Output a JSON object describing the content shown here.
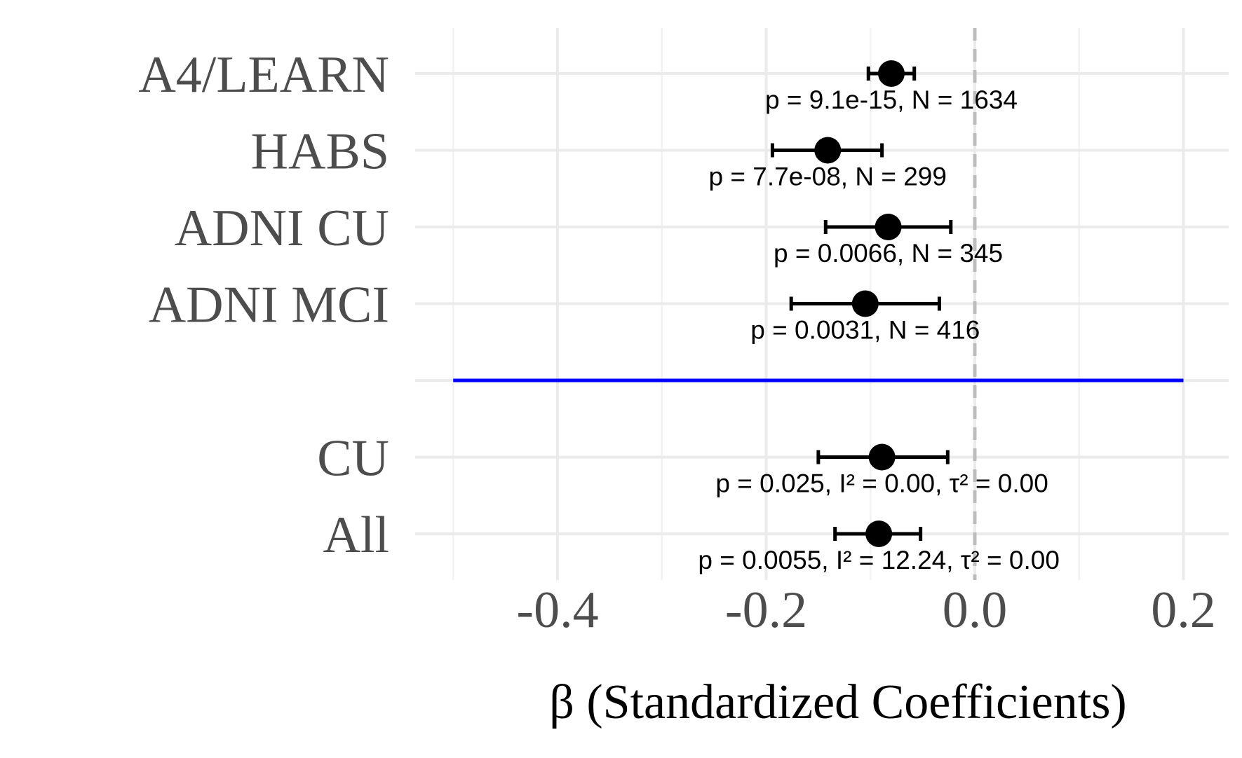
{
  "chart_data": {
    "type": "forest",
    "xlabel": "β (Standardized Coefficients)",
    "xlim": [
      -0.5,
      0.2
    ],
    "xticks": [
      -0.4,
      -0.2,
      0.0,
      0.2
    ],
    "xtick_labels": [
      "-0.4",
      "-0.2",
      "0.0",
      "0.2"
    ],
    "reference_line": {
      "x": 0.0,
      "style": "dashed",
      "color": "#bdbdbd"
    },
    "separator_line": {
      "color": "#0000ff",
      "x_range": [
        -0.5,
        0.2
      ]
    },
    "grid": true,
    "rows": [
      {
        "label": "A4/LEARN",
        "estimate": -0.08,
        "ci_low": -0.102,
        "ci_high": -0.058,
        "annotation": "p = 9.1e-15, N = 1634"
      },
      {
        "label": "HABS",
        "estimate": -0.141,
        "ci_low": -0.194,
        "ci_high": -0.089,
        "annotation": "p = 7.7e-08, N = 299"
      },
      {
        "label": "ADNI CU",
        "estimate": -0.083,
        "ci_low": -0.143,
        "ci_high": -0.023,
        "annotation": "p = 0.0066, N = 345"
      },
      {
        "label": "ADNI MCI",
        "estimate": -0.105,
        "ci_low": -0.176,
        "ci_high": -0.034,
        "annotation": "p = 0.0031, N = 416"
      },
      {
        "label": "",
        "estimate": null,
        "ci_low": null,
        "ci_high": null,
        "annotation": ""
      },
      {
        "label": "CU",
        "estimate": -0.089,
        "ci_low": -0.15,
        "ci_high": -0.026,
        "annotation": "p = 0.025, I² = 0.00, τ² = 0.00"
      },
      {
        "label": "All",
        "estimate": -0.092,
        "ci_low": -0.134,
        "ci_high": -0.052,
        "annotation": "p = 0.0055, I² = 12.24, τ² = 0.00"
      }
    ],
    "colors": {
      "points": "#000000",
      "separator": "#0000ff",
      "reference": "#bdbdbd"
    }
  }
}
